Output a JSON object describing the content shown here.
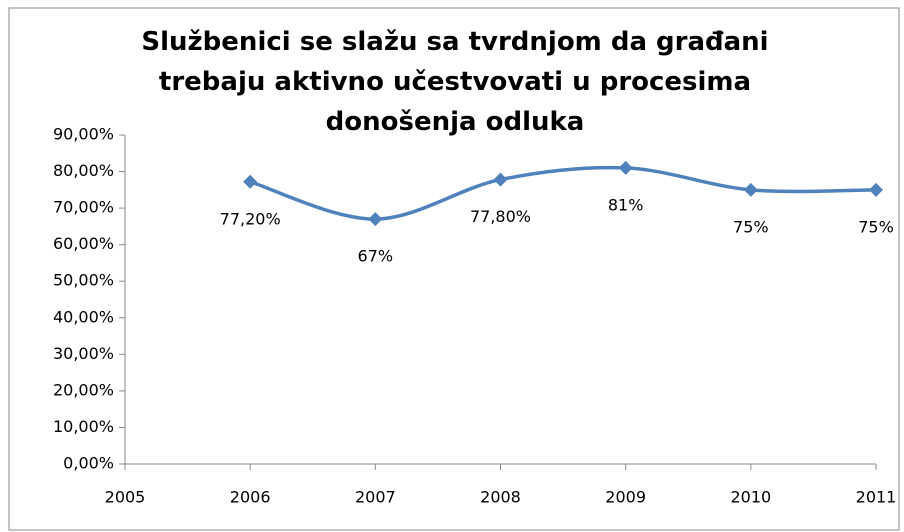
{
  "chart_data": {
    "type": "line",
    "title": "Službenici se slažu sa tvrdnjom da građani trebaju aktivno učestvovati u procesima donošenja odluka",
    "x": [
      2006,
      2007,
      2008,
      2009,
      2010,
      2011
    ],
    "series": [
      {
        "name": "Službenici",
        "color": "#4f81bd",
        "values": [
          77.2,
          67,
          77.8,
          81,
          75,
          75
        ],
        "value_labels": [
          "77,20%",
          "67%",
          "77,80%",
          "81%",
          "75%",
          "75%"
        ]
      }
    ],
    "xlim": [
      2005,
      2011
    ],
    "xticks": [
      2005,
      2006,
      2007,
      2008,
      2009,
      2010,
      2011
    ],
    "ylim": [
      0,
      90
    ],
    "yticks": [
      {
        "value": 0,
        "label": "0,00%"
      },
      {
        "value": 10,
        "label": "10,00%"
      },
      {
        "value": 20,
        "label": "20,00%"
      },
      {
        "value": 30,
        "label": "30,00%"
      },
      {
        "value": 40,
        "label": "40,00%"
      },
      {
        "value": 50,
        "label": "50,00%"
      },
      {
        "value": 60,
        "label": "60,00%"
      },
      {
        "value": 70,
        "label": "70,00%"
      },
      {
        "value": 80,
        "label": "80,00%"
      },
      {
        "value": 90,
        "label": "90,00%"
      }
    ],
    "grid": false
  }
}
